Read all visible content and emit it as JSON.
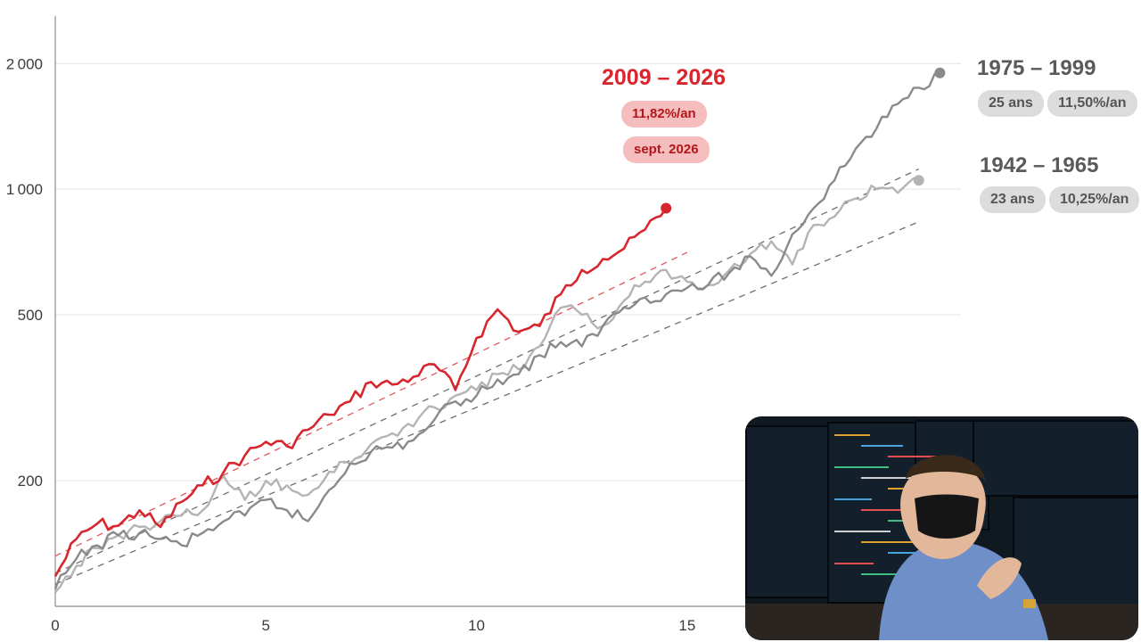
{
  "chart_data": {
    "type": "line",
    "x_ticks": [
      "0",
      "5",
      "10",
      "15"
    ],
    "y_ticks": [
      "200",
      "500",
      "1000",
      "2000"
    ],
    "y_scale": "log",
    "xlim": [
      0,
      21.5
    ],
    "ylim": [
      100,
      2600
    ],
    "grid": "horizontal",
    "series": [
      {
        "name": "2009 – 2026",
        "color": "#d7262e",
        "badges": [
          "11,82%/an",
          "sept. 2026"
        ],
        "trend_rate": 0.1182,
        "trend_start": 132,
        "x": [
          0,
          0.5,
          1,
          1.5,
          2,
          2.5,
          3,
          3.5,
          4,
          4.5,
          5,
          5.5,
          6,
          6.5,
          7,
          7.5,
          8,
          8.5,
          9,
          9.5,
          10,
          10.5,
          11,
          11.5,
          12,
          12.5,
          13,
          13.5,
          14,
          14.5
        ],
        "y": [
          118,
          145,
          158,
          156,
          170,
          155,
          178,
          195,
          210,
          230,
          248,
          242,
          265,
          288,
          310,
          345,
          340,
          355,
          380,
          330,
          440,
          515,
          455,
          470,
          560,
          640,
          680,
          720,
          800,
          900
        ]
      },
      {
        "name": "1975 – 1999",
        "color": "#8a8a8a",
        "badges": [
          "25 ans",
          "11,50%/an"
        ],
        "trend_rate": 0.115,
        "trend_start": 120,
        "x": [
          0,
          0.5,
          1,
          1.5,
          2,
          2.5,
          3,
          3.5,
          4,
          4.5,
          5,
          5.5,
          6,
          6.5,
          7,
          7.5,
          8,
          8.5,
          9,
          9.5,
          10,
          10.5,
          11,
          11.5,
          12,
          12.5,
          13,
          13.5,
          14,
          14.5,
          15,
          15.5,
          16,
          16.5,
          17,
          17.5,
          18,
          18.5,
          19,
          19.5,
          20,
          20.5,
          21
        ],
        "y": [
          110,
          130,
          140,
          148,
          150,
          145,
          140,
          150,
          160,
          165,
          180,
          170,
          160,
          190,
          220,
          235,
          240,
          250,
          280,
          310,
          320,
          350,
          360,
          400,
          430,
          420,
          470,
          520,
          550,
          560,
          580,
          590,
          630,
          690,
          620,
          780,
          900,
          1050,
          1250,
          1400,
          1600,
          1750,
          1900
        ]
      },
      {
        "name": "1942 – 1965",
        "color": "#b4b4b4",
        "badges": [
          "23 ans",
          "10,25%/an"
        ],
        "trend_rate": 0.1025,
        "trend_start": 113,
        "x": [
          0,
          0.5,
          1,
          1.5,
          2,
          2.5,
          3,
          3.5,
          4,
          4.5,
          5,
          5.5,
          6,
          6.5,
          7,
          7.5,
          8,
          8.5,
          9,
          9.5,
          10,
          10.5,
          11,
          11.5,
          12,
          12.5,
          13,
          13.5,
          14,
          14.5,
          15,
          15.5,
          16,
          16.5,
          17,
          17.5,
          18,
          18.5,
          19,
          19.5,
          20,
          20.5
        ],
        "y": [
          108,
          125,
          138,
          148,
          155,
          160,
          165,
          170,
          205,
          180,
          200,
          195,
          185,
          210,
          220,
          245,
          260,
          270,
          300,
          320,
          330,
          360,
          370,
          420,
          520,
          500,
          470,
          540,
          600,
          640,
          600,
          590,
          640,
          700,
          750,
          660,
          820,
          860,
          950,
          1000,
          980,
          1050
        ]
      }
    ]
  },
  "colors": {
    "grid": "#e4e4e4",
    "axis": "#8c8c8c",
    "red_trend": "#e0575d",
    "grey_trend": "#6e6e6e"
  }
}
